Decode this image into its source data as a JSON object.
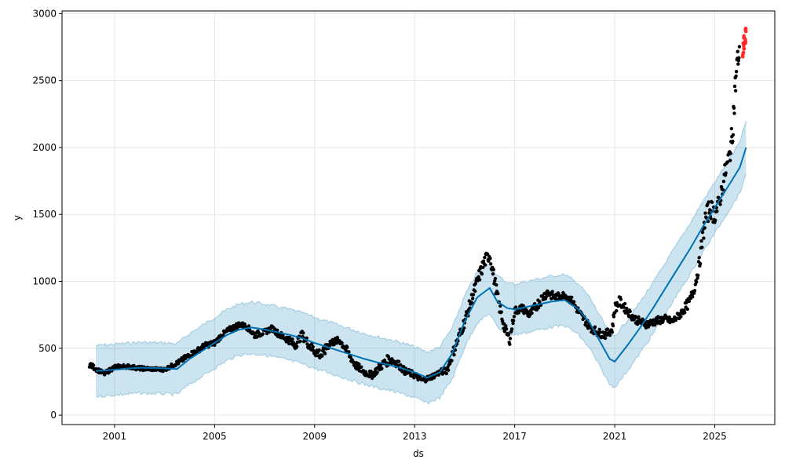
{
  "chart_data": {
    "type": "scatter",
    "title": "",
    "xlabel": "ds",
    "ylabel": "y",
    "x_tick_labels": [
      "2001",
      "2005",
      "2009",
      "2013",
      "2017",
      "2021",
      "2025"
    ],
    "x_tick_values": [
      2001,
      2005,
      2009,
      2013,
      2017,
      2021,
      2025
    ],
    "y_tick_values": [
      0,
      500,
      1000,
      1500,
      2000,
      2500,
      3000
    ],
    "xlim": [
      1998.9,
      2027.4
    ],
    "ylim": [
      -70,
      3020
    ],
    "grid": true,
    "colors": {
      "observed": "#000000",
      "future_observed": "#ff2a2a",
      "forecast_line": "#0072b2",
      "interval_fill": "#0072b2",
      "interval_edge": "#9ecae1"
    },
    "series": [
      {
        "role": "forecast",
        "x": [
          2000.25,
          2001.0,
          2002.0,
          2003.0,
          2003.5,
          2004.0,
          2004.5,
          2005.0,
          2005.5,
          2006.0,
          2006.5,
          2007.0,
          2007.5,
          2008.0,
          2008.5,
          2009.0,
          2009.5,
          2010.0,
          2010.5,
          2011.0,
          2011.5,
          2012.0,
          2012.5,
          2013.0,
          2013.5,
          2014.0,
          2014.5,
          2015.0,
          2015.5,
          2016.0,
          2016.3,
          2016.7,
          2017.0,
          2017.5,
          2018.0,
          2018.5,
          2019.0,
          2019.5,
          2020.0,
          2020.5,
          2020.8,
          2021.0,
          2021.5,
          2022.0,
          2022.5,
          2023.0,
          2023.5,
          2024.0,
          2024.5,
          2025.0,
          2025.5,
          2026.0,
          2026.25
        ],
        "yhat": [
          330,
          340,
          355,
          350,
          345,
          420,
          480,
          540,
          600,
          640,
          655,
          640,
          620,
          600,
          575,
          540,
          510,
          480,
          450,
          420,
          395,
          375,
          350,
          320,
          280,
          320,
          460,
          700,
          880,
          950,
          850,
          800,
          790,
          810,
          830,
          850,
          860,
          800,
          690,
          520,
          420,
          400,
          520,
          650,
          790,
          940,
          1090,
          1240,
          1400,
          1550,
          1700,
          1850,
          2000
        ],
        "yhat_lower": [
          140,
          150,
          165,
          160,
          155,
          230,
          290,
          350,
          410,
          450,
          460,
          450,
          430,
          410,
          385,
          350,
          320,
          290,
          260,
          230,
          205,
          185,
          160,
          130,
          90,
          130,
          270,
          510,
          690,
          760,
          660,
          610,
          600,
          620,
          640,
          660,
          670,
          610,
          500,
          330,
          230,
          210,
          330,
          460,
          600,
          750,
          900,
          1050,
          1210,
          1360,
          1510,
          1660,
          1800
        ],
        "yhat_upper": [
          520,
          530,
          545,
          540,
          535,
          610,
          670,
          730,
          790,
          830,
          845,
          830,
          810,
          790,
          765,
          730,
          700,
          670,
          640,
          610,
          585,
          565,
          540,
          510,
          470,
          510,
          650,
          890,
          1070,
          1140,
          1040,
          990,
          980,
          1000,
          1020,
          1040,
          1050,
          990,
          880,
          710,
          610,
          590,
          710,
          840,
          980,
          1130,
          1280,
          1430,
          1590,
          1740,
          1890,
          2040,
          2200
        ]
      },
      {
        "role": "observed",
        "x": [
          2000.0,
          2000.3,
          2000.6,
          2001.0,
          2001.5,
          2002.0,
          2002.5,
          2003.0,
          2003.3,
          2003.6,
          2004.0,
          2004.3,
          2004.6,
          2005.0,
          2005.3,
          2005.6,
          2006.0,
          2006.3,
          2006.6,
          2007.0,
          2007.3,
          2007.6,
          2008.0,
          2008.2,
          2008.5,
          2008.8,
          2009.0,
          2009.3,
          2009.6,
          2010.0,
          2010.3,
          2010.6,
          2011.0,
          2011.3,
          2011.6,
          2012.0,
          2012.3,
          2012.6,
          2013.0,
          2013.3,
          2013.6,
          2014.0,
          2014.3,
          2014.6,
          2015.0,
          2015.3,
          2015.6,
          2015.8,
          2016.0,
          2016.2,
          2016.4,
          2016.6,
          2016.8,
          2017.0,
          2017.3,
          2017.6,
          2018.0,
          2018.3,
          2018.6,
          2019.0,
          2019.3,
          2019.6,
          2020.0,
          2020.3,
          2020.6,
          2020.9,
          2021.0,
          2021.2,
          2021.5,
          2021.8,
          2022.0,
          2022.3,
          2022.6,
          2023.0,
          2023.3,
          2023.6,
          2024.0,
          2024.2,
          2024.4,
          2024.6,
          2024.8,
          2025.0,
          2025.2,
          2025.4,
          2025.6,
          2025.7,
          2025.8,
          2025.9,
          2026.0
        ],
        "y": [
          380,
          340,
          310,
          360,
          365,
          350,
          345,
          340,
          370,
          400,
          450,
          480,
          520,
          540,
          600,
          640,
          680,
          660,
          600,
          620,
          650,
          600,
          560,
          520,
          600,
          520,
          480,
          450,
          540,
          560,
          480,
          380,
          320,
          300,
          360,
          420,
          390,
          330,
          300,
          260,
          280,
          320,
          340,
          500,
          700,
          880,
          1050,
          1150,
          1200,
          1000,
          800,
          650,
          560,
          780,
          800,
          750,
          850,
          920,
          880,
          900,
          850,
          760,
          660,
          620,
          600,
          640,
          800,
          850,
          780,
          720,
          700,
          680,
          700,
          720,
          700,
          750,
          850,
          960,
          1150,
          1450,
          1550,
          1500,
          1600,
          1800,
          1950,
          2100,
          2400,
          2650,
          2700
        ],
        "y_spread": [
          40,
          30,
          30,
          30,
          30,
          30,
          25,
          25,
          30,
          35,
          40,
          40,
          40,
          40,
          40,
          40,
          40,
          40,
          50,
          40,
          40,
          50,
          60,
          70,
          60,
          70,
          80,
          80,
          60,
          50,
          60,
          60,
          50,
          50,
          60,
          80,
          60,
          50,
          50,
          40,
          40,
          40,
          60,
          80,
          80,
          90,
          100,
          100,
          90,
          100,
          80,
          80,
          60,
          60,
          60,
          60,
          80,
          70,
          60,
          50,
          60,
          60,
          60,
          60,
          60,
          60,
          80,
          80,
          60,
          60,
          60,
          60,
          60,
          60,
          50,
          60,
          80,
          80,
          100,
          150,
          150,
          150,
          120,
          150,
          150,
          200,
          250,
          150,
          150
        ]
      },
      {
        "role": "future_observed",
        "x": [
          2026.12,
          2026.15,
          2026.18,
          2026.21,
          2026.24
        ],
        "y": [
          2700,
          2760,
          2820,
          2790,
          2860
        ]
      }
    ]
  }
}
